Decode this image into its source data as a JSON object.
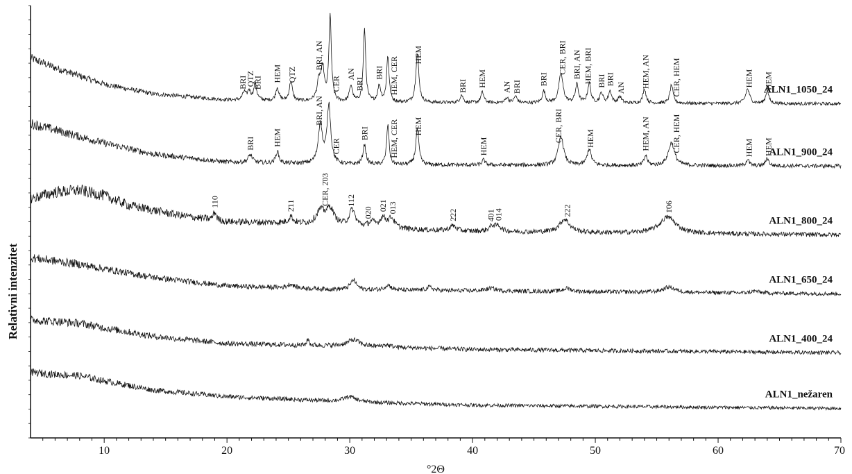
{
  "chart_data": {
    "type": "line",
    "xlabel": "°2Θ",
    "ylabel": "Relativni intenzitet",
    "xlim": [
      4,
      70
    ],
    "x_ticks": [
      10,
      20,
      30,
      40,
      50,
      60,
      70
    ],
    "grid": false,
    "legend": "series labels at right end of each trace",
    "series": [
      {
        "name": "ALN1_1050_24",
        "baseline": 5.1,
        "noise": 0.05,
        "bg": [
          [
            4,
            0.7
          ],
          [
            6,
            0.55
          ],
          [
            10,
            0.3
          ],
          [
            14,
            0.15
          ],
          [
            20,
            0.06
          ],
          [
            30,
            0.02
          ],
          [
            70,
            0.0
          ]
        ],
        "peaks": [
          [
            21.4,
            0.12,
            0.15
          ],
          [
            21.8,
            0.14,
            0.15
          ],
          [
            22.3,
            0.25,
            0.15
          ],
          [
            24.1,
            0.2,
            0.15
          ],
          [
            25.2,
            0.3,
            0.15
          ],
          [
            27.5,
            0.3,
            0.2
          ],
          [
            27.8,
            0.45,
            0.15
          ],
          [
            28.4,
            1.3,
            0.12
          ],
          [
            30.1,
            0.25,
            0.15
          ],
          [
            31.2,
            1.1,
            0.12
          ],
          [
            32.4,
            0.25,
            0.15
          ],
          [
            33.1,
            0.7,
            0.12
          ],
          [
            35.5,
            0.75,
            0.15
          ],
          [
            39.1,
            0.12,
            0.15
          ],
          [
            40.8,
            0.16,
            0.15
          ],
          [
            42.8,
            0.08,
            0.15
          ],
          [
            43.5,
            0.1,
            0.15
          ],
          [
            45.8,
            0.18,
            0.15
          ],
          [
            47.2,
            0.45,
            0.2
          ],
          [
            48.5,
            0.28,
            0.15
          ],
          [
            49.5,
            0.3,
            0.15
          ],
          [
            50.5,
            0.15,
            0.15
          ],
          [
            51.2,
            0.18,
            0.15
          ],
          [
            52.0,
            0.1,
            0.15
          ],
          [
            54.0,
            0.22,
            0.15
          ],
          [
            56.2,
            0.28,
            0.15
          ],
          [
            62.4,
            0.22,
            0.2
          ],
          [
            64.0,
            0.2,
            0.15
          ]
        ]
      },
      {
        "name": "ALN1_900_24",
        "baseline": 4.15,
        "noise": 0.06,
        "bg": [
          [
            4,
            0.65
          ],
          [
            6,
            0.55
          ],
          [
            10,
            0.35
          ],
          [
            14,
            0.18
          ],
          [
            20,
            0.06
          ],
          [
            30,
            0.02
          ],
          [
            70,
            0.0
          ]
        ],
        "peaks": [
          [
            21.9,
            0.12,
            0.2
          ],
          [
            24.1,
            0.18,
            0.15
          ],
          [
            27.6,
            0.6,
            0.2
          ],
          [
            28.3,
            0.9,
            0.18
          ],
          [
            31.2,
            0.3,
            0.15
          ],
          [
            33.1,
            0.6,
            0.12
          ],
          [
            35.5,
            0.55,
            0.15
          ],
          [
            40.9,
            0.08,
            0.15
          ],
          [
            47.2,
            0.45,
            0.25
          ],
          [
            49.5,
            0.25,
            0.2
          ],
          [
            54.1,
            0.15,
            0.15
          ],
          [
            56.2,
            0.35,
            0.3
          ],
          [
            62.4,
            0.1,
            0.15
          ],
          [
            64.0,
            0.12,
            0.15
          ]
        ]
      },
      {
        "name": "ALN1_800_24",
        "baseline": 3.1,
        "noise": 0.07,
        "bg": [
          [
            4,
            0.55
          ],
          [
            6,
            0.65
          ],
          [
            8,
            0.68
          ],
          [
            10,
            0.6
          ],
          [
            12,
            0.45
          ],
          [
            16,
            0.3
          ],
          [
            20,
            0.2
          ],
          [
            25,
            0.18
          ],
          [
            30,
            0.12
          ],
          [
            35,
            0.08
          ],
          [
            40,
            0.05
          ],
          [
            50,
            0.03
          ],
          [
            70,
            0.0
          ]
        ],
        "peaks": [
          [
            19.0,
            0.12,
            0.15
          ],
          [
            25.2,
            0.1,
            0.2
          ],
          [
            27.6,
            0.2,
            0.4
          ],
          [
            28.4,
            0.25,
            0.4
          ],
          [
            30.2,
            0.25,
            0.3
          ],
          [
            31.8,
            0.08,
            0.3
          ],
          [
            32.7,
            0.15,
            0.3
          ],
          [
            33.4,
            0.15,
            0.3
          ],
          [
            38.4,
            0.08,
            0.3
          ],
          [
            41.6,
            0.08,
            0.3
          ],
          [
            42.1,
            0.08,
            0.3
          ],
          [
            47.5,
            0.2,
            0.5
          ],
          [
            55.9,
            0.25,
            0.8
          ]
        ]
      },
      {
        "name": "ALN1_650_24",
        "baseline": 2.2,
        "noise": 0.06,
        "bg": [
          [
            4,
            0.55
          ],
          [
            6,
            0.5
          ],
          [
            8,
            0.45
          ],
          [
            10,
            0.38
          ],
          [
            14,
            0.25
          ],
          [
            20,
            0.12
          ],
          [
            30,
            0.06
          ],
          [
            50,
            0.03
          ],
          [
            70,
            0.0
          ]
        ],
        "peaks": [
          [
            25.2,
            0.06,
            0.3
          ],
          [
            30.3,
            0.15,
            0.3
          ],
          [
            33.1,
            0.08,
            0.3
          ],
          [
            36.5,
            0.05,
            0.3
          ],
          [
            41.5,
            0.04,
            0.5
          ],
          [
            47.7,
            0.05,
            0.4
          ],
          [
            56.0,
            0.08,
            0.6
          ],
          [
            63.0,
            0.03,
            0.4
          ]
        ]
      },
      {
        "name": "ALN1_400_24",
        "baseline": 1.3,
        "noise": 0.06,
        "bg": [
          [
            4,
            0.5
          ],
          [
            6,
            0.48
          ],
          [
            8,
            0.45
          ],
          [
            10,
            0.38
          ],
          [
            14,
            0.25
          ],
          [
            20,
            0.14
          ],
          [
            30,
            0.1
          ],
          [
            40,
            0.05
          ],
          [
            70,
            0.0
          ]
        ],
        "peaks": [
          [
            26.6,
            0.1,
            0.1
          ],
          [
            30.3,
            0.1,
            0.6
          ],
          [
            33.0,
            0.03,
            0.4
          ]
        ]
      },
      {
        "name": "ALN1_nežaren",
        "baseline": 0.45,
        "noise": 0.05,
        "bg": [
          [
            4,
            0.55
          ],
          [
            6,
            0.52
          ],
          [
            8,
            0.5
          ],
          [
            10,
            0.42
          ],
          [
            14,
            0.28
          ],
          [
            20,
            0.18
          ],
          [
            30,
            0.1
          ],
          [
            40,
            0.05
          ],
          [
            70,
            0.0
          ]
        ],
        "peaks": [
          [
            30.0,
            0.08,
            0.6
          ]
        ]
      }
    ],
    "annotations": [
      {
        "series": 0,
        "x": 21.3,
        "text": "BRI"
      },
      {
        "series": 0,
        "x": 21.9,
        "text": "QTZ"
      },
      {
        "series": 0,
        "x": 22.5,
        "text": "BRI"
      },
      {
        "series": 0,
        "x": 24.1,
        "text": "HEM"
      },
      {
        "series": 0,
        "x": 25.3,
        "text": "QTZ"
      },
      {
        "series": 0,
        "x": 27.5,
        "text": "BRI, AN"
      },
      {
        "series": 0,
        "x": 28.9,
        "text": "CER"
      },
      {
        "series": 0,
        "x": 30.1,
        "text": "AN"
      },
      {
        "series": 0,
        "x": 30.8,
        "text": "BRI"
      },
      {
        "series": 0,
        "x": 32.4,
        "text": "BRI"
      },
      {
        "series": 0,
        "x": 33.6,
        "text": "HEM, CER"
      },
      {
        "series": 0,
        "x": 35.6,
        "text": "HEM"
      },
      {
        "series": 0,
        "x": 39.2,
        "text": "BRI"
      },
      {
        "series": 0,
        "x": 40.8,
        "text": "HEM"
      },
      {
        "series": 0,
        "x": 42.8,
        "text": "AN"
      },
      {
        "series": 0,
        "x": 43.6,
        "text": "BRI"
      },
      {
        "series": 0,
        "x": 45.8,
        "text": "BRI"
      },
      {
        "series": 0,
        "x": 47.3,
        "text": "CER, BRI"
      },
      {
        "series": 0,
        "x": 48.5,
        "text": "BRI, AN"
      },
      {
        "series": 0,
        "x": 49.4,
        "text": "HEM, BRI"
      },
      {
        "series": 0,
        "x": 50.5,
        "text": "BRI"
      },
      {
        "series": 0,
        "x": 51.2,
        "text": "BRI"
      },
      {
        "series": 0,
        "x": 52.1,
        "text": "AN"
      },
      {
        "series": 0,
        "x": 54.1,
        "text": "HEM, AN"
      },
      {
        "series": 0,
        "x": 56.6,
        "text": "CER, HEM"
      },
      {
        "series": 0,
        "x": 62.5,
        "text": "HEM"
      },
      {
        "series": 0,
        "x": 64.1,
        "text": "HEM"
      },
      {
        "series": 1,
        "x": 21.9,
        "text": "BRI"
      },
      {
        "series": 1,
        "x": 24.1,
        "text": "HEM"
      },
      {
        "series": 1,
        "x": 27.5,
        "text": "BRI, AN"
      },
      {
        "series": 1,
        "x": 28.9,
        "text": "CER"
      },
      {
        "series": 1,
        "x": 31.2,
        "text": "BRI"
      },
      {
        "series": 1,
        "x": 33.6,
        "text": "HEM, CER"
      },
      {
        "series": 1,
        "x": 35.6,
        "text": "HEM"
      },
      {
        "series": 1,
        "x": 40.9,
        "text": "HEM"
      },
      {
        "series": 1,
        "x": 47.0,
        "text": "CER, BRI"
      },
      {
        "series": 1,
        "x": 49.6,
        "text": "HEM"
      },
      {
        "series": 1,
        "x": 54.1,
        "text": "HEM, AN"
      },
      {
        "series": 1,
        "x": 56.6,
        "text": "CER, HEM"
      },
      {
        "series": 1,
        "x": 62.5,
        "text": "HEM"
      },
      {
        "series": 1,
        "x": 64.1,
        "text": "HEM"
      },
      {
        "series": 2,
        "x": 19.0,
        "text": "110"
      },
      {
        "series": 2,
        "x": 25.2,
        "text": "2̄11"
      },
      {
        "series": 2,
        "x": 28.0,
        "text": "CER, 2̄03"
      },
      {
        "series": 2,
        "x": 30.1,
        "text": "112"
      },
      {
        "series": 2,
        "x": 31.5,
        "text": "020"
      },
      {
        "series": 2,
        "x": 32.7,
        "text": "021"
      },
      {
        "series": 2,
        "x": 33.5,
        "text": "013"
      },
      {
        "series": 2,
        "x": 38.4,
        "text": "2̄22"
      },
      {
        "series": 2,
        "x": 41.5,
        "text": "4̄01"
      },
      {
        "series": 2,
        "x": 42.1,
        "text": "014"
      },
      {
        "series": 2,
        "x": 47.7,
        "text": "222"
      },
      {
        "series": 2,
        "x": 56.0,
        "text": "1̄06"
      }
    ]
  }
}
